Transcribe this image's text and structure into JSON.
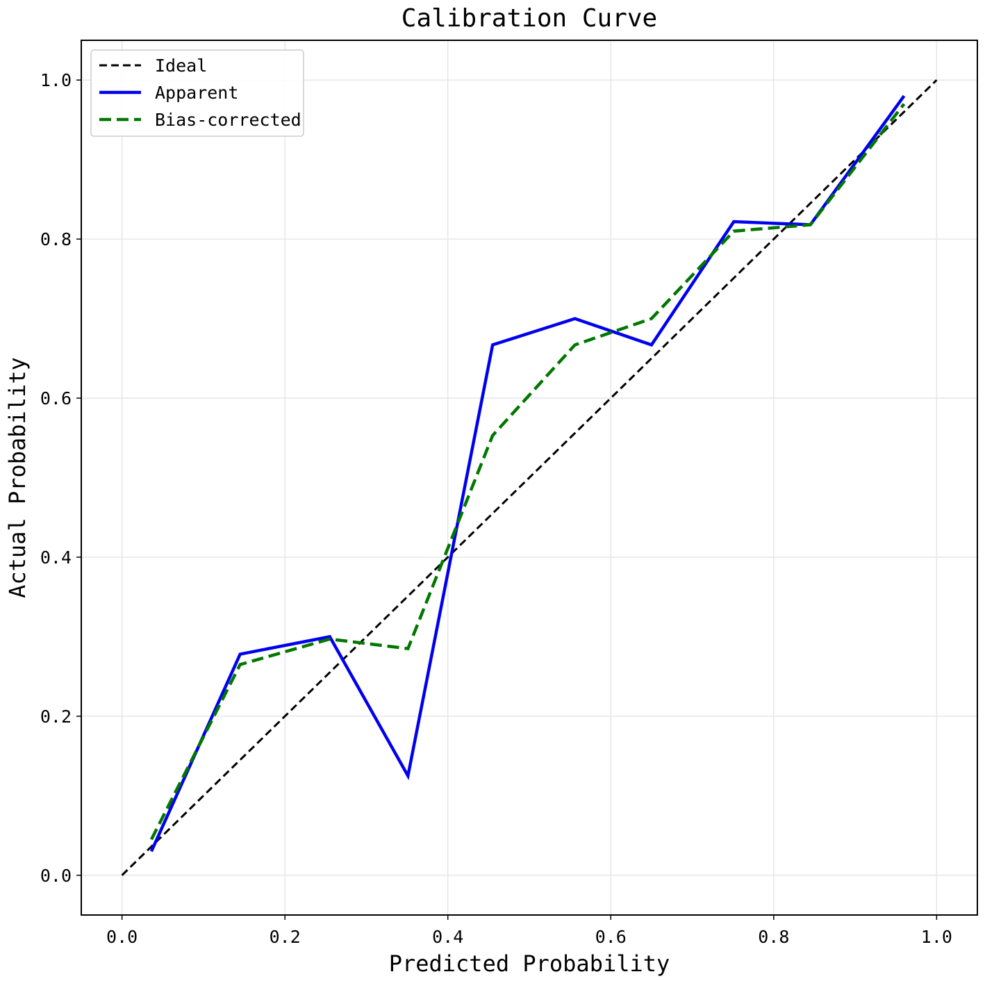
{
  "chart_data": {
    "type": "line",
    "title": "Calibration Curve",
    "xlabel": "Predicted Probability",
    "ylabel": "Actual Probability",
    "xlim": [
      -0.05,
      1.05
    ],
    "ylim": [
      -0.05,
      1.05
    ],
    "xticks": [
      0.0,
      0.2,
      0.4,
      0.6,
      0.8,
      1.0
    ],
    "yticks": [
      0.0,
      0.2,
      0.4,
      0.6,
      0.8,
      1.0
    ],
    "xtick_labels": [
      "0.0",
      "0.2",
      "0.4",
      "0.6",
      "0.8",
      "1.0"
    ],
    "ytick_labels": [
      "0.0",
      "0.2",
      "0.4",
      "0.6",
      "0.8",
      "1.0"
    ],
    "grid": true,
    "legend_position": "top-left",
    "series": [
      {
        "name": "Ideal",
        "color": "#000000",
        "style": "dashed",
        "x": [
          0.0,
          1.0
        ],
        "y": [
          0.0,
          1.0
        ]
      },
      {
        "name": "Apparent",
        "color": "#0000ee",
        "style": "solid",
        "x": [
          0.036,
          0.145,
          0.255,
          0.351,
          0.455,
          0.556,
          0.65,
          0.751,
          0.845,
          0.96
        ],
        "y": [
          0.03,
          0.278,
          0.3,
          0.125,
          0.667,
          0.7,
          0.667,
          0.822,
          0.818,
          0.98
        ]
      },
      {
        "name": "Bias-corrected",
        "color": "#007700",
        "style": "dashed",
        "x": [
          0.036,
          0.145,
          0.255,
          0.351,
          0.455,
          0.556,
          0.65,
          0.751,
          0.845,
          0.96
        ],
        "y": [
          0.045,
          0.265,
          0.297,
          0.285,
          0.553,
          0.667,
          0.7,
          0.81,
          0.818,
          0.97
        ]
      }
    ]
  }
}
